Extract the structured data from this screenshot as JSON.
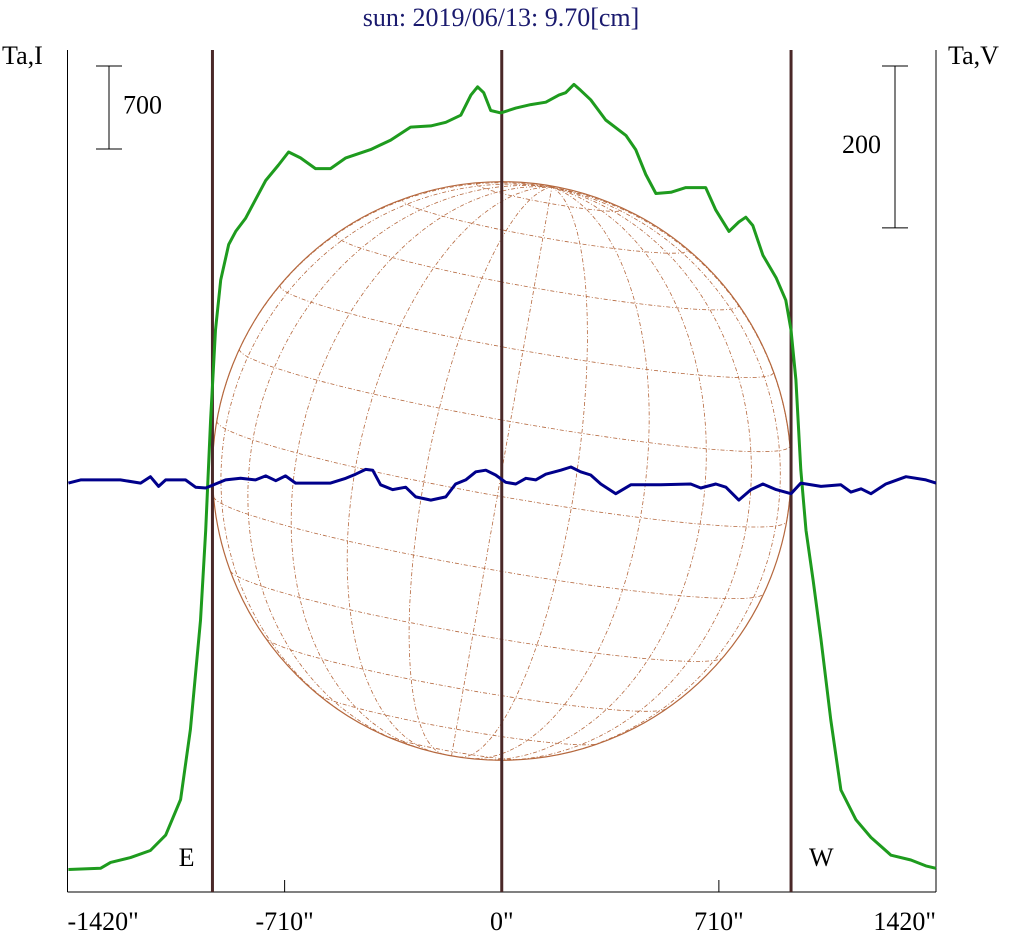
{
  "chart_data": {
    "type": "line",
    "title": "sun: 2019/06/13: 9.70[cm]",
    "ylabel": "Ta,I",
    "y2label": "Ta,V",
    "xlim": [
      -1420,
      1420
    ],
    "xticks": [
      {
        "value": -1420,
        "label": "-1420\""
      },
      {
        "value": -710,
        "label": "-710\""
      },
      {
        "value": 0,
        "label": "0\""
      },
      {
        "value": 710,
        "label": "710\""
      },
      {
        "value": 1420,
        "label": "1420\""
      }
    ],
    "ylim": [
      0,
      7100
    ],
    "y2lim": [
      -500,
      540
    ],
    "vlines": [
      -946,
      0,
      946
    ],
    "disk_radius": 946,
    "limb_labels": [
      "E",
      "W"
    ],
    "scale_bars": [
      {
        "value": 700,
        "axis": "y"
      },
      {
        "value": 200,
        "axis": "y2"
      }
    ],
    "series": [
      {
        "color": "#1e9b1e",
        "axis": "y",
        "x": [
          -1417,
          -1312,
          -1279,
          -1214,
          -1149,
          -1099,
          -1050,
          -1018,
          -985,
          -968,
          -952,
          -936,
          -919,
          -893,
          -870,
          -838,
          -805,
          -772,
          -730,
          -697,
          -658,
          -609,
          -560,
          -510,
          -429,
          -363,
          -298,
          -232,
          -183,
          -134,
          -101,
          -79,
          -59,
          -36,
          -3,
          46,
          95,
          144,
          187,
          209,
          236,
          258,
          291,
          340,
          406,
          438,
          471,
          504,
          553,
          602,
          667,
          700,
          743,
          775,
          798,
          821,
          854,
          897,
          929,
          946,
          962,
          978,
          995,
          1018,
          1044,
          1076,
          1109,
          1158,
          1207,
          1273,
          1338,
          1387,
          1420
        ],
        "values": [
          190,
          200,
          250,
          290,
          350,
          480,
          780,
          1370,
          2290,
          3050,
          3980,
          4740,
          5160,
          5460,
          5570,
          5680,
          5840,
          6000,
          6130,
          6240,
          6190,
          6100,
          6100,
          6190,
          6260,
          6340,
          6450,
          6460,
          6490,
          6550,
          6720,
          6790,
          6740,
          6590,
          6570,
          6610,
          6640,
          6660,
          6720,
          6740,
          6810,
          6760,
          6680,
          6510,
          6380,
          6260,
          6050,
          5890,
          5900,
          5940,
          5940,
          5750,
          5570,
          5650,
          5690,
          5620,
          5370,
          5180,
          4990,
          4740,
          4320,
          3560,
          3050,
          2630,
          2130,
          1450,
          860,
          610,
          460,
          310,
          270,
          220,
          200
        ]
      },
      {
        "color": "#00008b",
        "axis": "y2",
        "x": [
          -1417,
          -1377,
          -1247,
          -1181,
          -1149,
          -1122,
          -1099,
          -1034,
          -1001,
          -968,
          -936,
          -903,
          -854,
          -805,
          -772,
          -739,
          -707,
          -674,
          -641,
          -560,
          -510,
          -478,
          -445,
          -422,
          -396,
          -357,
          -314,
          -281,
          -232,
          -183,
          -151,
          -118,
          -85,
          -52,
          -20,
          13,
          46,
          79,
          111,
          144,
          193,
          226,
          258,
          291,
          324,
          373,
          422,
          520,
          618,
          651,
          700,
          733,
          775,
          815,
          854,
          897,
          946,
          978,
          1044,
          1109,
          1142,
          1175,
          1207,
          1256,
          1322,
          1387,
          1420
        ],
        "values": [
          5,
          9,
          9,
          5,
          13,
          1,
          9,
          9,
          0,
          -1,
          4,
          9,
          11,
          9,
          14,
          8,
          14,
          5,
          5,
          5,
          11,
          16,
          22,
          21,
          3,
          -3,
          0,
          -12,
          -16,
          -12,
          4,
          9,
          19,
          21,
          15,
          6,
          4,
          11,
          9,
          16,
          21,
          25,
          19,
          15,
          4,
          -8,
          3,
          3,
          4,
          -1,
          4,
          0,
          -16,
          -3,
          4,
          -3,
          -8,
          5,
          1,
          3,
          -6,
          -2,
          -8,
          4,
          13,
          9,
          5
        ]
      }
    ]
  }
}
